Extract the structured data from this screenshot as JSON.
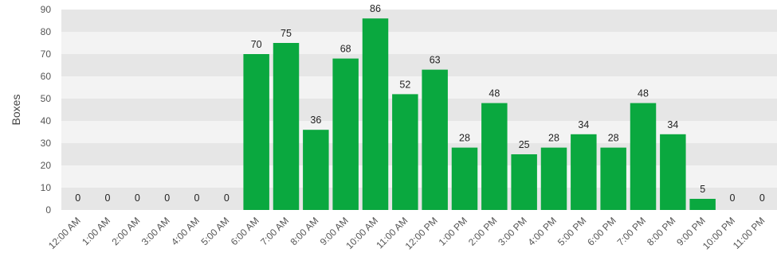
{
  "chart_data": {
    "type": "bar",
    "title": "",
    "xlabel": "",
    "ylabel": "Boxes",
    "ylim": [
      0,
      90
    ],
    "yticks": [
      0,
      10,
      20,
      30,
      40,
      50,
      60,
      70,
      80,
      90
    ],
    "grid": "horizontal bands",
    "legend": "none",
    "categories": [
      "12:00 AM",
      "1:00 AM",
      "2:00 AM",
      "3:00 AM",
      "4:00 AM",
      "5:00 AM",
      "6:00 AM",
      "7:00 AM",
      "8:00 AM",
      "9:00 AM",
      "10:00 AM",
      "11:00 AM",
      "12:00 PM",
      "1:00 PM",
      "2:00 PM",
      "3:00 PM",
      "4:00 PM",
      "5:00 PM",
      "6:00 PM",
      "7:00 PM",
      "8:00 PM",
      "9:00 PM",
      "10:00 PM",
      "11:00 PM"
    ],
    "values": [
      0,
      0,
      0,
      0,
      0,
      0,
      70,
      75,
      36,
      68,
      86,
      52,
      63,
      28,
      48,
      25,
      28,
      34,
      28,
      48,
      34,
      5,
      0,
      0
    ],
    "colors": {
      "bar": "#0aa83f",
      "band_dark": "#e6e6e6",
      "band_light": "#f3f3f3"
    }
  }
}
